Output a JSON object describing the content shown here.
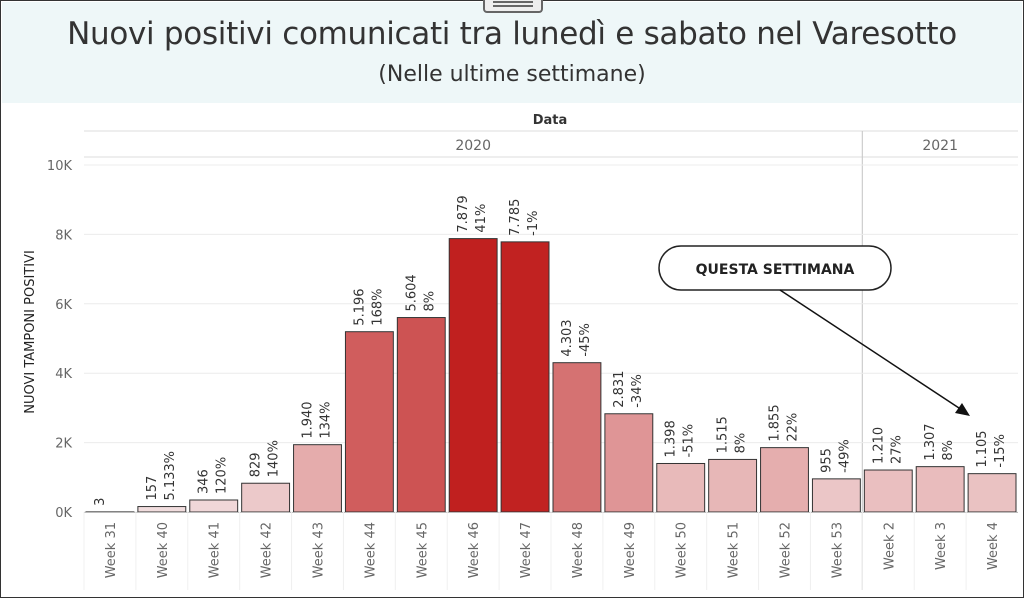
{
  "title": "Nuovi positivi comunicati tra lunedì e sabato nel Varesotto",
  "subtitle": "(Nelle ultime settimane)",
  "chart_data": {
    "type": "bar",
    "column_header": "Data",
    "groups": [
      {
        "label": "2020",
        "categories": [
          "Week 31",
          "Week 40",
          "Week 41",
          "Week 42",
          "Week 43",
          "Week 44",
          "Week 45",
          "Week 46",
          "Week 47",
          "Week 48",
          "Week 49",
          "Week 50",
          "Week 51",
          "Week 52",
          "Week 53"
        ]
      },
      {
        "label": "2021",
        "categories": [
          "Week 2",
          "Week 3",
          "Week 4"
        ]
      }
    ],
    "categories": [
      "Week 31",
      "Week 40",
      "Week 41",
      "Week 42",
      "Week 43",
      "Week 44",
      "Week 45",
      "Week 46",
      "Week 47",
      "Week 48",
      "Week 49",
      "Week 50",
      "Week 51",
      "Week 52",
      "Week 53",
      "Week 2",
      "Week 3",
      "Week 4"
    ],
    "values": [
      3,
      157,
      346,
      829,
      1940,
      5196,
      5604,
      7879,
      7785,
      4303,
      2831,
      1398,
      1515,
      1855,
      955,
      1210,
      1307,
      1105
    ],
    "value_labels": [
      "3",
      "157",
      "346",
      "829",
      "1.940",
      "5.196",
      "5.604",
      "7.879",
      "7.785",
      "4.303",
      "2.831",
      "1.398",
      "1.515",
      "1.855",
      "955",
      "1.210",
      "1.307",
      "1.105"
    ],
    "change_labels": [
      "",
      "5.133%",
      "120%",
      "140%",
      "134%",
      "168%",
      "8%",
      "41%",
      "-1%",
      "-45%",
      "-34%",
      "-51%",
      "8%",
      "22%",
      "-49%",
      "27%",
      "8%",
      "-15%"
    ],
    "ylabel": "NUOVI TAMPONI POSITIVI",
    "ylim": [
      0,
      10500
    ],
    "yticks": [
      0,
      2000,
      4000,
      6000,
      8000,
      10000
    ],
    "ytick_labels": [
      "0K",
      "2K",
      "4K",
      "6K",
      "8K",
      "10K"
    ],
    "grid": true,
    "color_scale": {
      "low": "#f3e3e4",
      "high": "#c0201f"
    },
    "annotation": {
      "text": "QUESTA SETTIMANA",
      "target": "Week 4"
    }
  }
}
